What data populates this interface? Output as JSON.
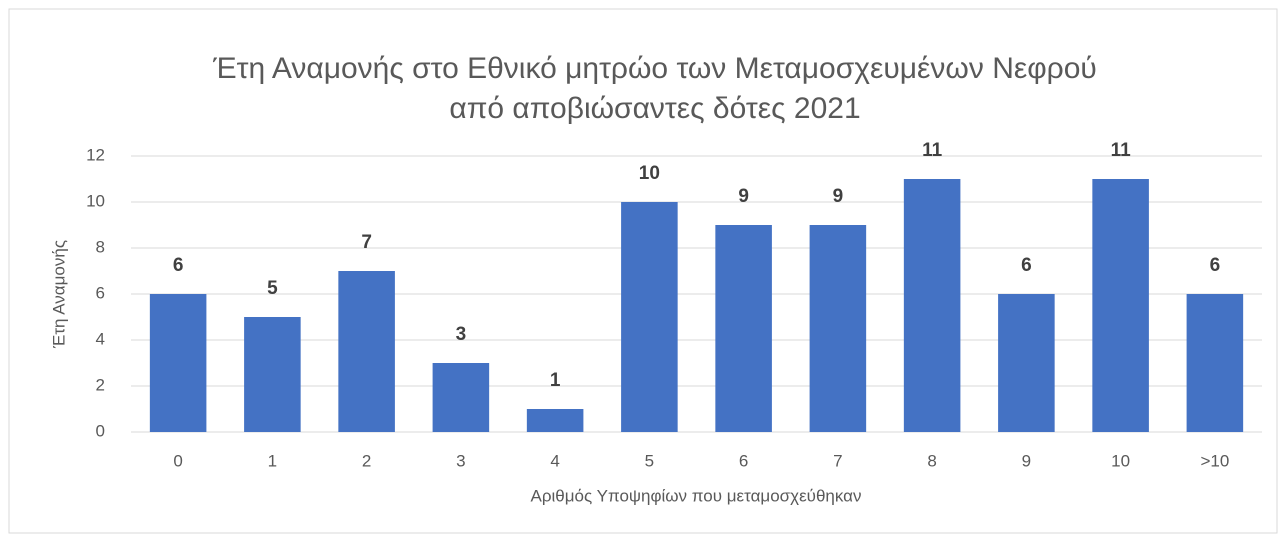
{
  "chart_data": {
    "type": "bar",
    "title": [
      "Έτη Αναμονής στο Εθνικό μητρώο των Μεταμοσχευμένων Νεφρού",
      "από αποβιώσαντες δότες 2021"
    ],
    "x_label": "Αριθμός Υποψηφίων που μεταμοσχεύθηκαν",
    "y_label": "Έτη Αναμονής",
    "categories": [
      "0",
      "1",
      "2",
      "3",
      "4",
      "5",
      "6",
      "7",
      "8",
      "9",
      "10",
      ">10"
    ],
    "values": [
      6,
      5,
      7,
      3,
      1,
      10,
      9,
      9,
      11,
      6,
      11,
      6
    ],
    "color": "#4472c4",
    "ylim": [
      0,
      12
    ],
    "yticks": [
      0,
      2,
      4,
      6,
      8,
      10,
      12
    ],
    "grid": true
  }
}
